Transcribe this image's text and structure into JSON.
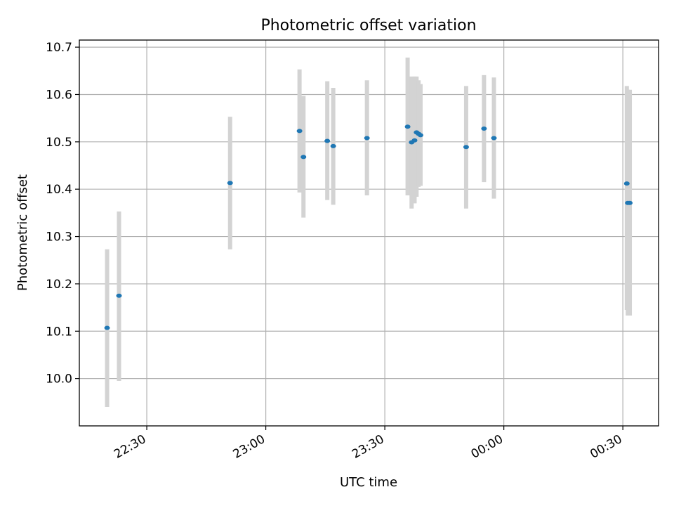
{
  "chart_data": {
    "type": "scatter",
    "title": "Photometric offset variation",
    "xlabel": "UTC time",
    "ylabel": "Photometric offset",
    "x_type": "time",
    "xlim": [
      "22:13",
      "00:39"
    ],
    "ylim": [
      9.9,
      10.715
    ],
    "grid": true,
    "marker_color": "#1f77b4",
    "errorbar_color": "#d3d3d3",
    "x_ticks": [
      "22:30",
      "23:00",
      "23:30",
      "00:00",
      "00:30"
    ],
    "y_ticks": [
      10.0,
      10.1,
      10.2,
      10.3,
      10.4,
      10.5,
      10.6,
      10.7
    ],
    "points": [
      {
        "x": "22:20:00",
        "y": 10.107,
        "yerr_low": 9.94,
        "yerr_high": 10.273
      },
      {
        "x": "22:23:00",
        "y": 10.175,
        "yerr_low": 9.995,
        "yerr_high": 10.353
      },
      {
        "x": "22:51:00",
        "y": 10.413,
        "yerr_low": 10.273,
        "yerr_high": 10.553
      },
      {
        "x": "23:08:30",
        "y": 10.523,
        "yerr_low": 10.393,
        "yerr_high": 10.653
      },
      {
        "x": "23:09:30",
        "y": 10.468,
        "yerr_low": 10.34,
        "yerr_high": 10.597
      },
      {
        "x": "23:15:30",
        "y": 10.502,
        "yerr_low": 10.377,
        "yerr_high": 10.628
      },
      {
        "x": "23:17:00",
        "y": 10.491,
        "yerr_low": 10.367,
        "yerr_high": 10.614
      },
      {
        "x": "23:25:30",
        "y": 10.508,
        "yerr_low": 10.387,
        "yerr_high": 10.63
      },
      {
        "x": "23:35:45",
        "y": 10.532,
        "yerr_low": 10.387,
        "yerr_high": 10.678
      },
      {
        "x": "23:36:45",
        "y": 10.499,
        "yerr_low": 10.359,
        "yerr_high": 10.638
      },
      {
        "x": "23:37:30",
        "y": 10.503,
        "yerr_low": 10.37,
        "yerr_high": 10.638
      },
      {
        "x": "23:38:00",
        "y": 10.52,
        "yerr_low": 10.384,
        "yerr_high": 10.638
      },
      {
        "x": "23:38:30",
        "y": 10.517,
        "yerr_low": 10.405,
        "yerr_high": 10.63
      },
      {
        "x": "23:39:00",
        "y": 10.514,
        "yerr_low": 10.407,
        "yerr_high": 10.622
      },
      {
        "x": "23:50:30",
        "y": 10.489,
        "yerr_low": 10.359,
        "yerr_high": 10.618
      },
      {
        "x": "23:55:00",
        "y": 10.528,
        "yerr_low": 10.415,
        "yerr_high": 10.641
      },
      {
        "x": "23:57:30",
        "y": 10.508,
        "yerr_low": 10.38,
        "yerr_high": 10.636
      },
      {
        "x": "00:31:00",
        "y": 10.412,
        "yerr_low": 10.145,
        "yerr_high": 10.618
      },
      {
        "x": "00:31:15",
        "y": 10.371,
        "yerr_low": 10.133,
        "yerr_high": 10.61
      },
      {
        "x": "00:31:45",
        "y": 10.371,
        "yerr_low": 10.133,
        "yerr_high": 10.61
      }
    ]
  }
}
